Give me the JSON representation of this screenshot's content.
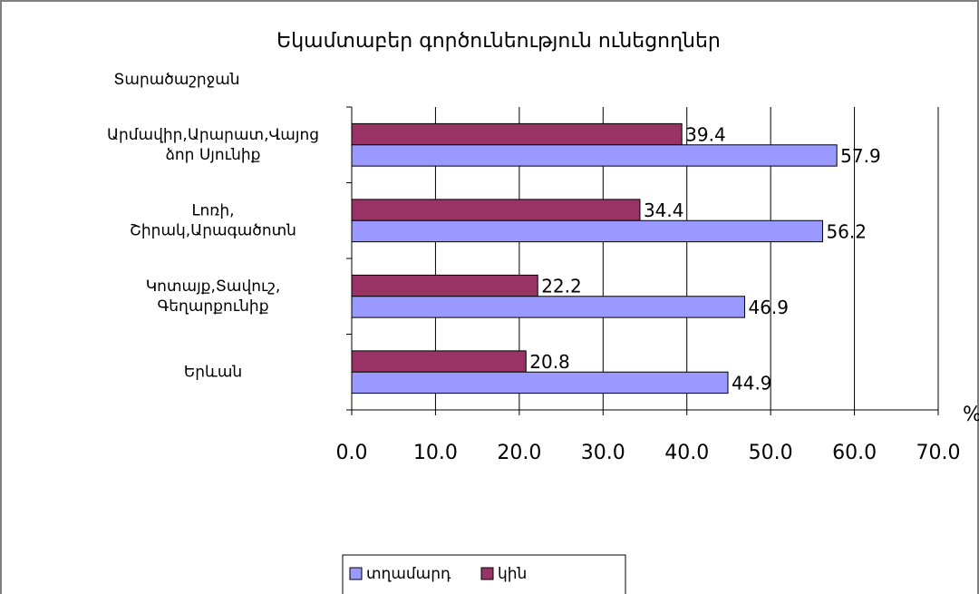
{
  "chart_data": {
    "type": "barh",
    "title": "Եկամտաբեր գործունեություն ունեցողներ",
    "y_axis_label": "Տարածաշրջան",
    "x_axis_label": "%",
    "categories": [
      "Արմավիր,Արարատ,Վայոց\nձոր Սյունիք",
      "Լոռի,\nՇիրակ,Արագածոտն",
      "Կոտայք,Տավուշ,\nԳեղարքունիք",
      "Երևան"
    ],
    "series": [
      {
        "name": "տղամարդ",
        "color": "#9999ff",
        "values": [
          57.9,
          56.2,
          46.9,
          44.9
        ]
      },
      {
        "name": "կին",
        "color": "#993366",
        "values": [
          39.4,
          34.4,
          22.2,
          20.8
        ]
      }
    ],
    "xlim": [
      0,
      70
    ],
    "xticks": [
      {
        "value": 0,
        "label": "0.0"
      },
      {
        "value": 10,
        "label": "10.0"
      },
      {
        "value": 20,
        "label": "20.0"
      },
      {
        "value": 30,
        "label": "30.0"
      },
      {
        "value": 40,
        "label": "40.0"
      },
      {
        "value": 50,
        "label": "50.0"
      },
      {
        "value": 60,
        "label": "60.0"
      },
      {
        "value": 70,
        "label": "70.0"
      }
    ],
    "grid": true,
    "legend": "bottom"
  }
}
